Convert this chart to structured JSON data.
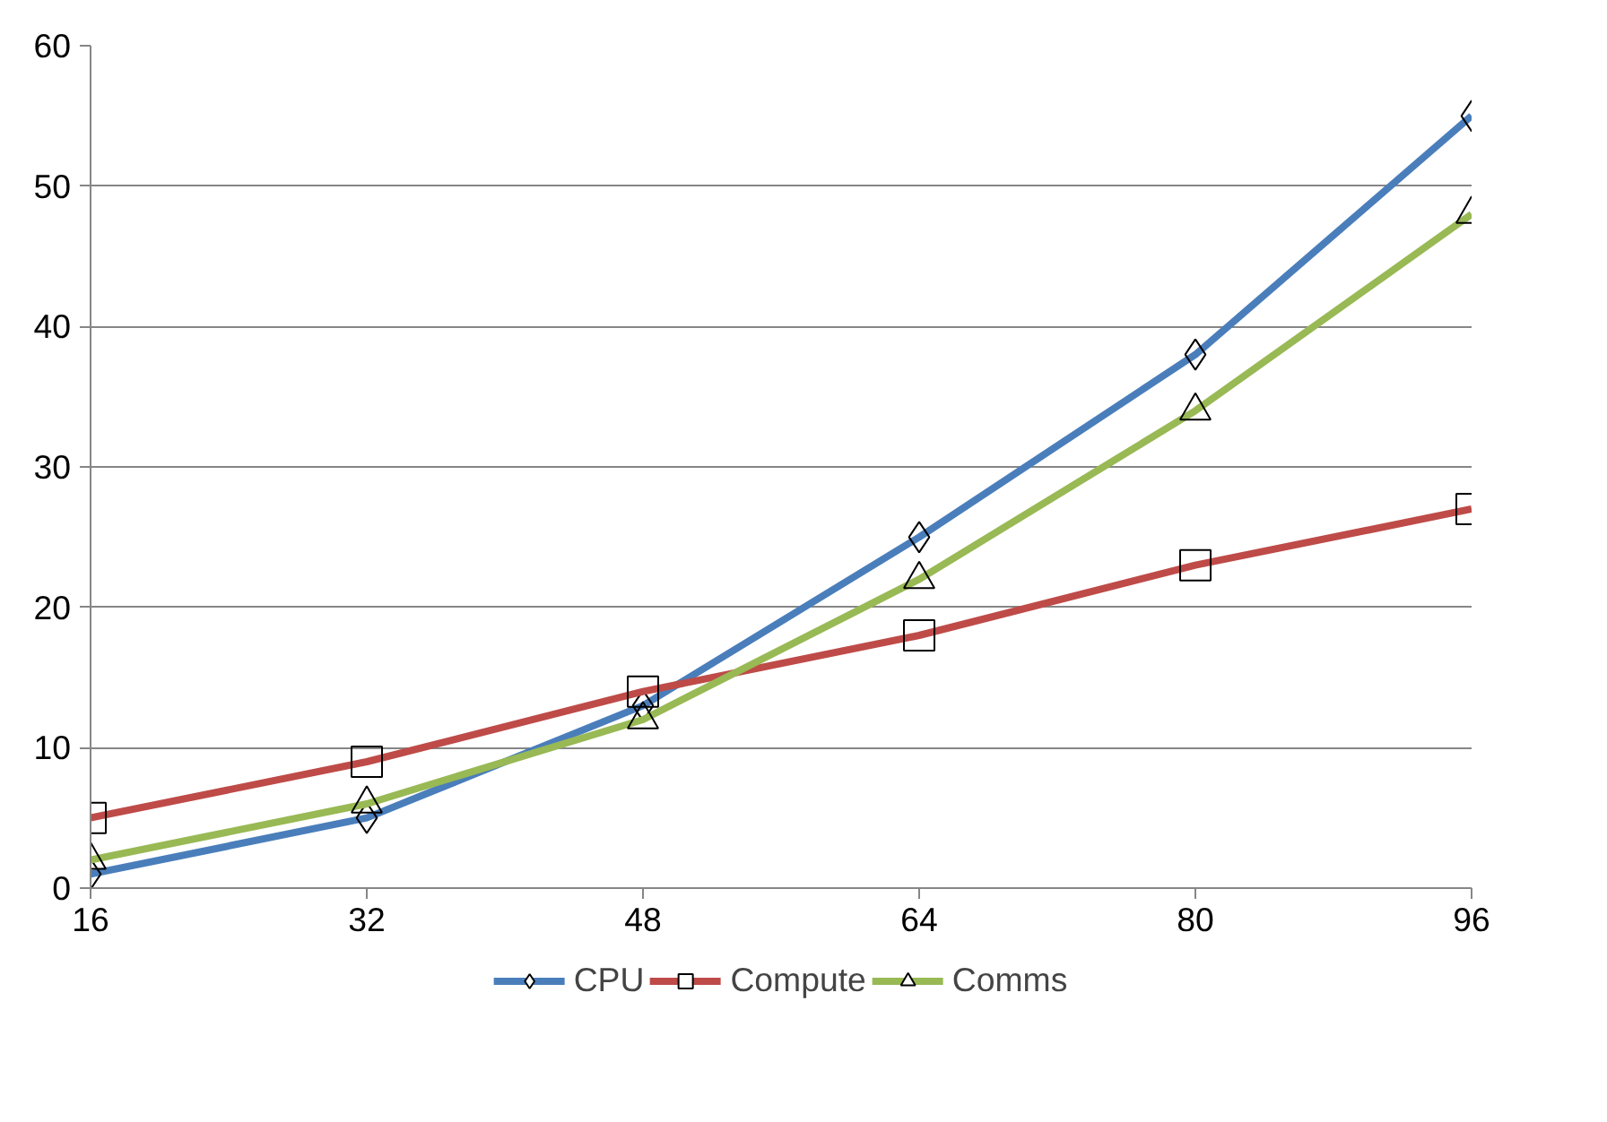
{
  "chart_data": {
    "type": "line",
    "x": [
      16,
      32,
      48,
      64,
      80,
      96
    ],
    "xlim": [
      16,
      96
    ],
    "xticks": [
      16,
      32,
      48,
      64,
      80,
      96
    ],
    "ylim": [
      0,
      60
    ],
    "yticks": [
      0,
      10,
      20,
      30,
      40,
      50,
      60
    ],
    "grid": "y",
    "legend": "bottom",
    "line_style": "solid",
    "series": [
      {
        "name": "CPU",
        "color": "#4a7ebb",
        "marker": "diamond",
        "values": [
          1,
          5,
          13,
          25,
          38,
          55
        ]
      },
      {
        "name": "Compute",
        "color": "#be4b48",
        "marker": "square",
        "values": [
          5,
          9,
          14,
          18,
          23,
          27
        ]
      },
      {
        "name": "Comms",
        "color": "#98b954",
        "marker": "triangle",
        "values": [
          2,
          6,
          12,
          22,
          34,
          48
        ]
      }
    ]
  }
}
